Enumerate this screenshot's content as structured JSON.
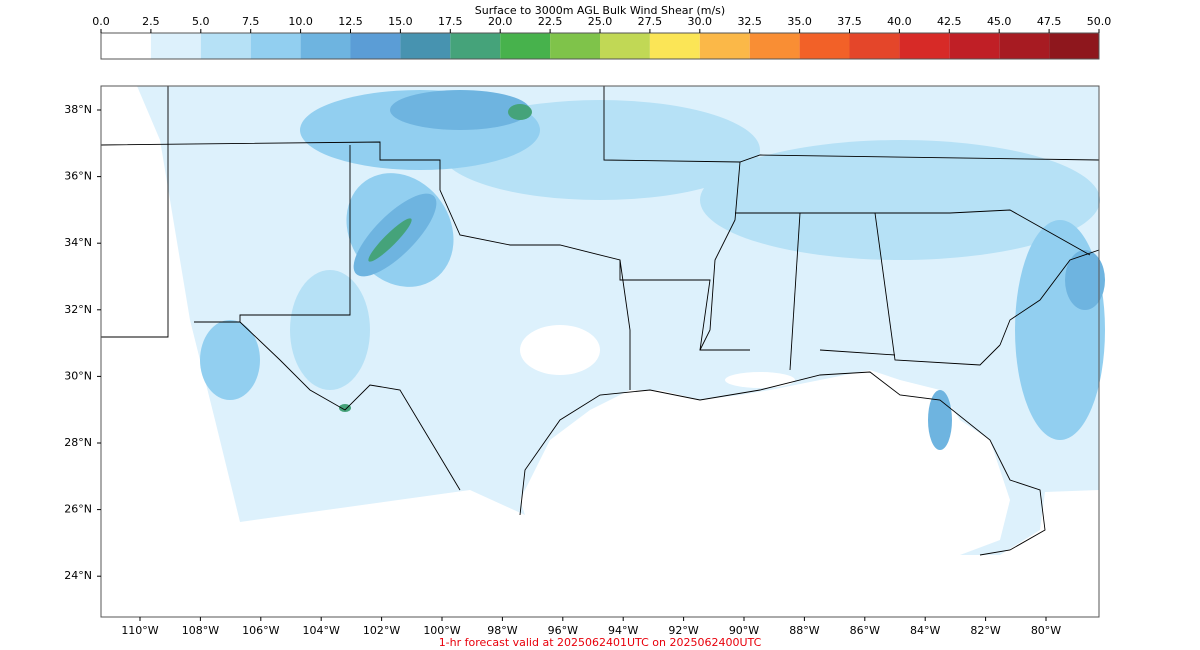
{
  "colorbar": {
    "title": "Surface to 3000m AGL Bulk Wind Shear (m/s)",
    "ticks": [
      {
        "value": 0,
        "label": "0.0"
      },
      2.5,
      {
        "value": 5,
        "label": "5.0"
      },
      7.5,
      {
        "value": 10,
        "label": "10.0"
      },
      12.5,
      {
        "value": 15,
        "label": "15.0"
      },
      17.5,
      {
        "value": 20,
        "label": "20.0"
      },
      22.5,
      {
        "value": 25,
        "label": "25.0"
      },
      27.5,
      {
        "value": 30,
        "label": "30.0"
      },
      32.5,
      {
        "value": 35,
        "label": "35.0"
      },
      37.5,
      {
        "value": 40,
        "label": "40.0"
      },
      42.5,
      {
        "value": 45,
        "label": "45.0"
      },
      47.5,
      {
        "value": 50,
        "label": "50.0"
      }
    ],
    "colors": [
      "#ffffff",
      "#ddf1fc",
      "#b6e1f6",
      "#92cff0",
      "#6eb4e0",
      "#5b9dd6",
      "#4793b0",
      "#45a37a",
      "#47b24c",
      "#7fc34a",
      "#c1d855",
      "#fbe556",
      "#fbb848",
      "#f98e34",
      "#f26128",
      "#e4462a",
      "#d72a27",
      "#c01f26",
      "#a71b22",
      "#8e171d"
    ]
  },
  "map": {
    "lat_ticks": [
      {
        "value": 38,
        "label": "38°N"
      },
      {
        "value": 36,
        "label": "36°N"
      },
      {
        "value": 34,
        "label": "34°N"
      },
      {
        "value": 32,
        "label": "32°N"
      },
      {
        "value": 30,
        "label": "30°N"
      },
      {
        "value": 28,
        "label": "28°N"
      },
      {
        "value": 26,
        "label": "26°N"
      },
      {
        "value": 24,
        "label": "24°N"
      }
    ],
    "lon_ticks": [
      {
        "value": -110,
        "label": "110°W"
      },
      {
        "value": -108,
        "label": "108°W"
      },
      {
        "value": -106,
        "label": "106°W"
      },
      {
        "value": -104,
        "label": "104°W"
      },
      {
        "value": -102,
        "label": "102°W"
      },
      {
        "value": -100,
        "label": "100°W"
      },
      {
        "value": -98,
        "label": "98°W"
      },
      {
        "value": -96,
        "label": "96°W"
      },
      {
        "value": -94,
        "label": "94°W"
      },
      {
        "value": -92,
        "label": "92°W"
      },
      {
        "value": -90,
        "label": "90°W"
      },
      {
        "value": -88,
        "label": "88°W"
      },
      {
        "value": -86,
        "label": "86°W"
      },
      {
        "value": -84,
        "label": "84°W"
      },
      {
        "value": -82,
        "label": "82°W"
      },
      {
        "value": -80,
        "label": "80°W"
      }
    ]
  },
  "footer": "1-hr forecast valid at 2025062401UTC on 2025062400UTC"
}
